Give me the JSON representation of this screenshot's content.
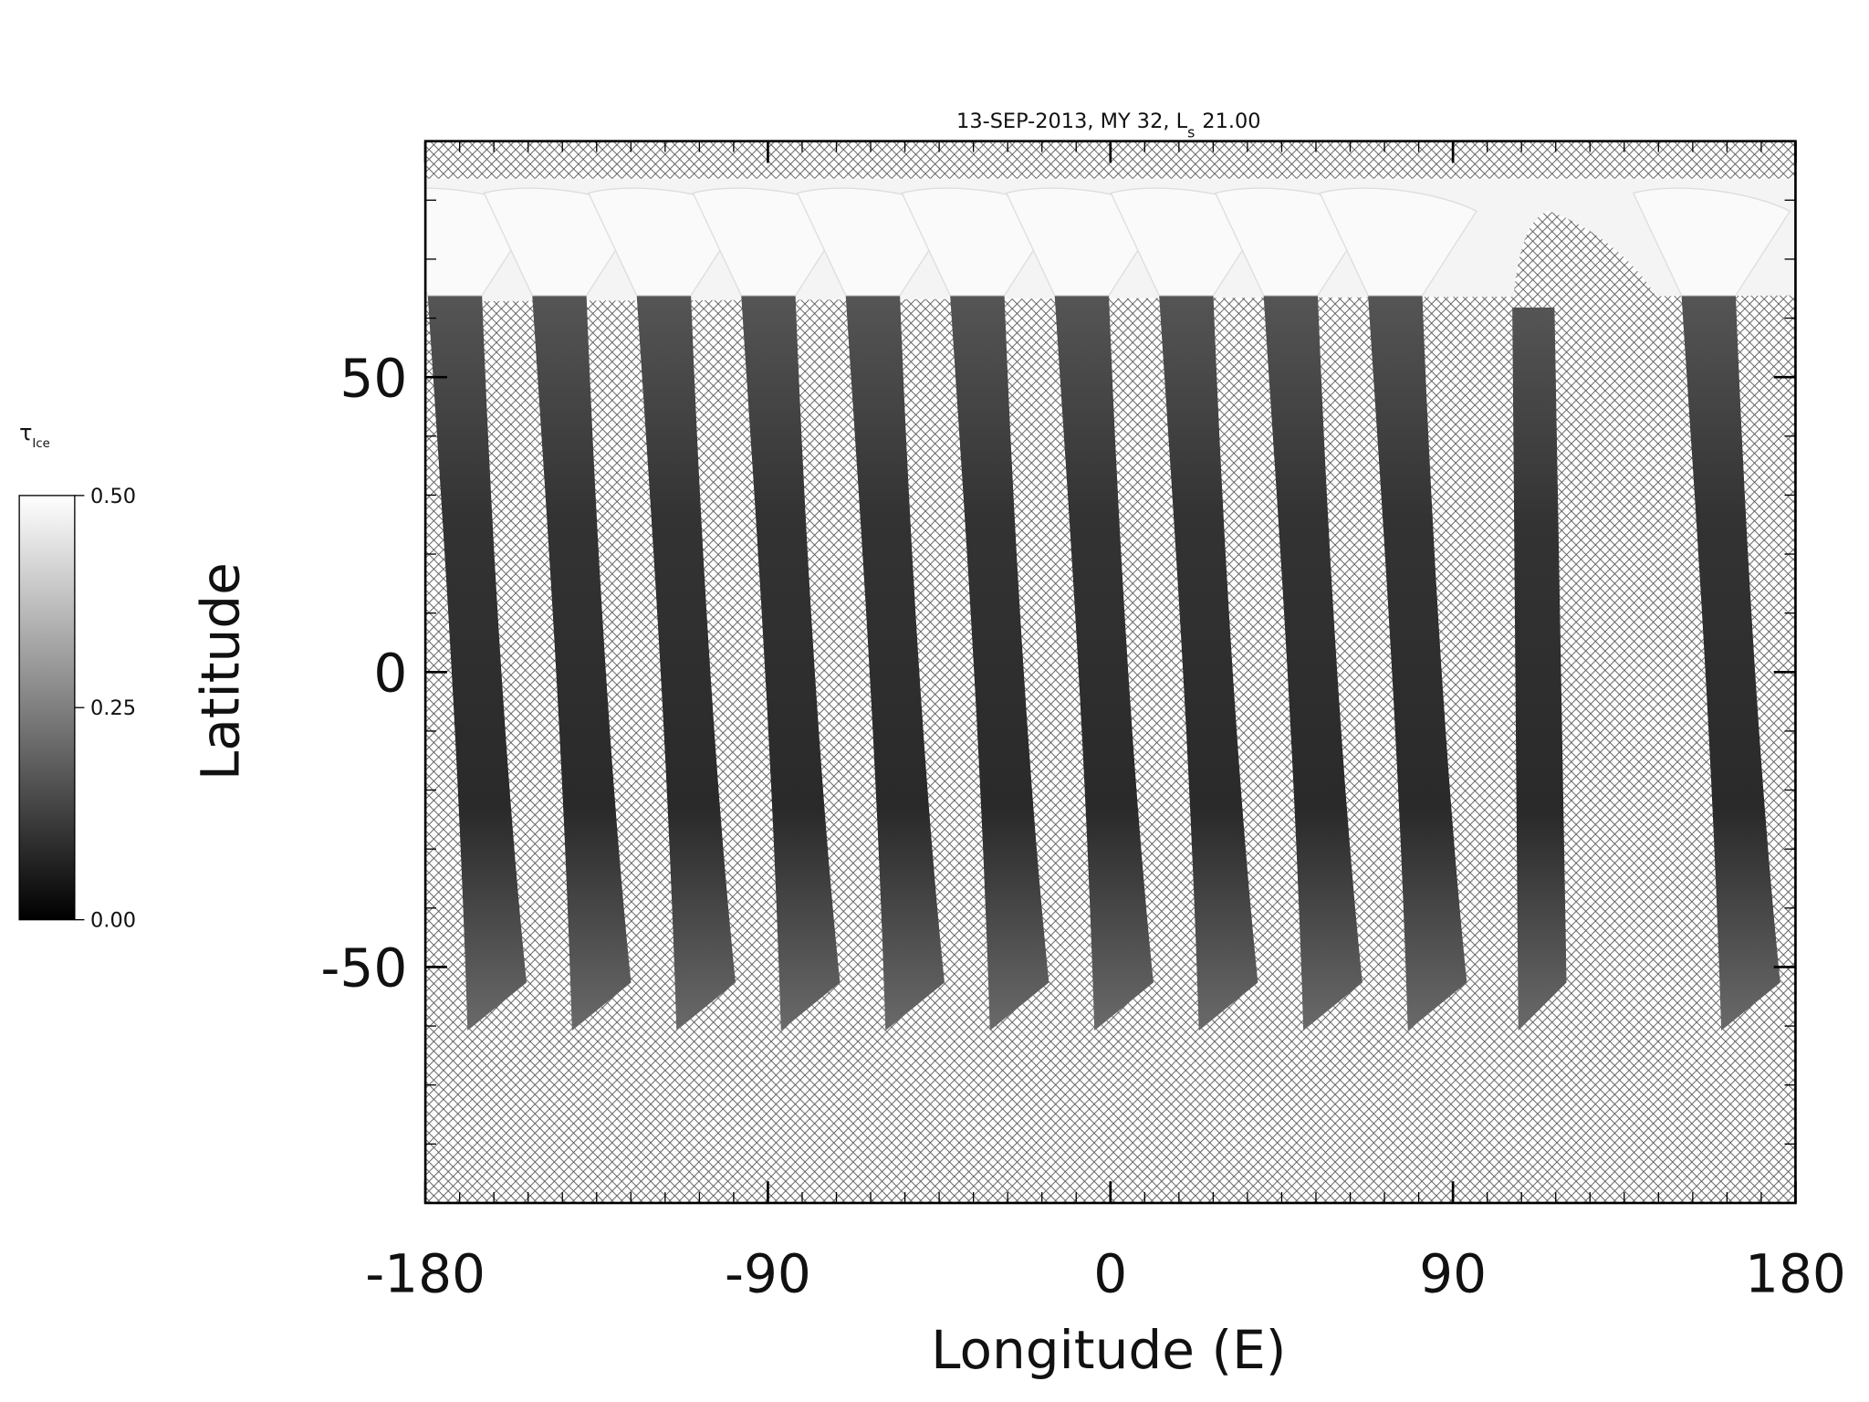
{
  "chart_data": {
    "type": "map",
    "title": "13-SEP-2013, MY 32,  L",
    "title_subscript": "s",
    "title_value": "21.00",
    "xlabel": "Longitude (E)",
    "ylabel": "Latitude",
    "xlim": [
      -180,
      180
    ],
    "ylim": [
      -90,
      90
    ],
    "xticks": [
      -180,
      -90,
      0,
      90,
      180
    ],
    "yticks": [
      -50,
      0,
      50
    ],
    "xminorticks": [
      -171,
      -162,
      -153,
      -144,
      -135,
      -126,
      -117,
      -108,
      -99,
      -81,
      -72,
      -63,
      -54,
      -45,
      -36,
      -27,
      -18,
      -9,
      9,
      18,
      27,
      36,
      45,
      54,
      63,
      72,
      81,
      99,
      108,
      117,
      126,
      135,
      144,
      153,
      162,
      171
    ],
    "yminorticks": [
      -80,
      -70,
      -60,
      -40,
      -30,
      -20,
      -10,
      10,
      20,
      30,
      40,
      60,
      70,
      80
    ],
    "colorbar": {
      "label": "τ",
      "label_subscript": "Ice",
      "lim": [
        0,
        0.5
      ],
      "ticks": [
        {
          "value": 0,
          "label": "0.00"
        },
        {
          "value": 0.25,
          "label": "0.25"
        },
        {
          "value": 0.5,
          "label": "0.50"
        }
      ]
    }
  }
}
